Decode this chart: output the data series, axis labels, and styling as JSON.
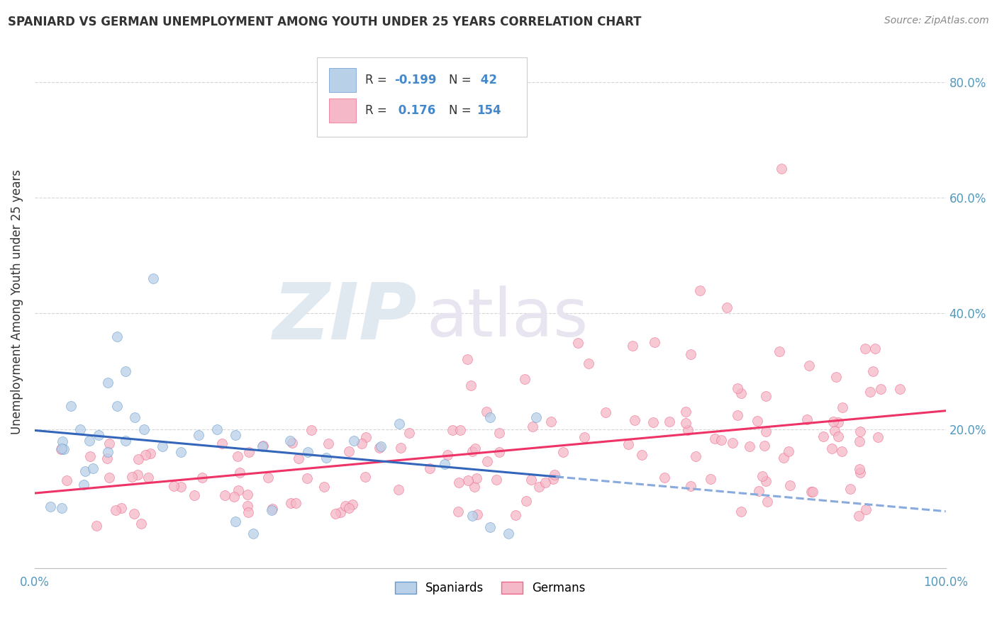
{
  "title": "SPANIARD VS GERMAN UNEMPLOYMENT AMONG YOUTH UNDER 25 YEARS CORRELATION CHART",
  "source": "Source: ZipAtlas.com",
  "ylabel": "Unemployment Among Youth under 25 years",
  "watermark_zip": "ZIP",
  "watermark_atlas": "atlas",
  "spaniards_color": "#b8d0e8",
  "spaniards_edge": "#6699cc",
  "spaniards_line_color": "#3366bb",
  "spaniards_dashed_color": "#88aadd",
  "germans_color": "#f5b8c8",
  "germans_edge": "#ee6688",
  "germans_line_color": "#ee3366",
  "scatter_alpha": 0.75,
  "scatter_size": 100,
  "xlim": [
    0,
    1.0
  ],
  "ylim": [
    -0.04,
    0.88
  ],
  "yticks": [
    0.0,
    0.2,
    0.4,
    0.6,
    0.8
  ],
  "right_ytick_labels": [
    "",
    "20.0%",
    "40.0%",
    "60.0%",
    "80.0%"
  ],
  "xtick_positions": [
    0.0,
    1.0
  ],
  "xtick_labels": [
    "0.0%",
    "100.0%"
  ],
  "gridline_color": "#cccccc",
  "gridline_y": [
    0.2,
    0.4,
    0.6,
    0.8
  ],
  "legend_box_color": "#ffffff",
  "legend_box_edge": "#cccccc",
  "legend_r1": "-0.199",
  "legend_n1": "42",
  "legend_r2": " 0.176",
  "legend_n2": "154",
  "legend_text_color": "#333333",
  "legend_num_color": "#4488cc",
  "bottom_legend_spaniards": "Spaniards",
  "bottom_legend_germans": "Germans",
  "title_color": "#333333",
  "source_color": "#888888",
  "ylabel_color": "#333333",
  "tick_label_color": "#5599bb"
}
